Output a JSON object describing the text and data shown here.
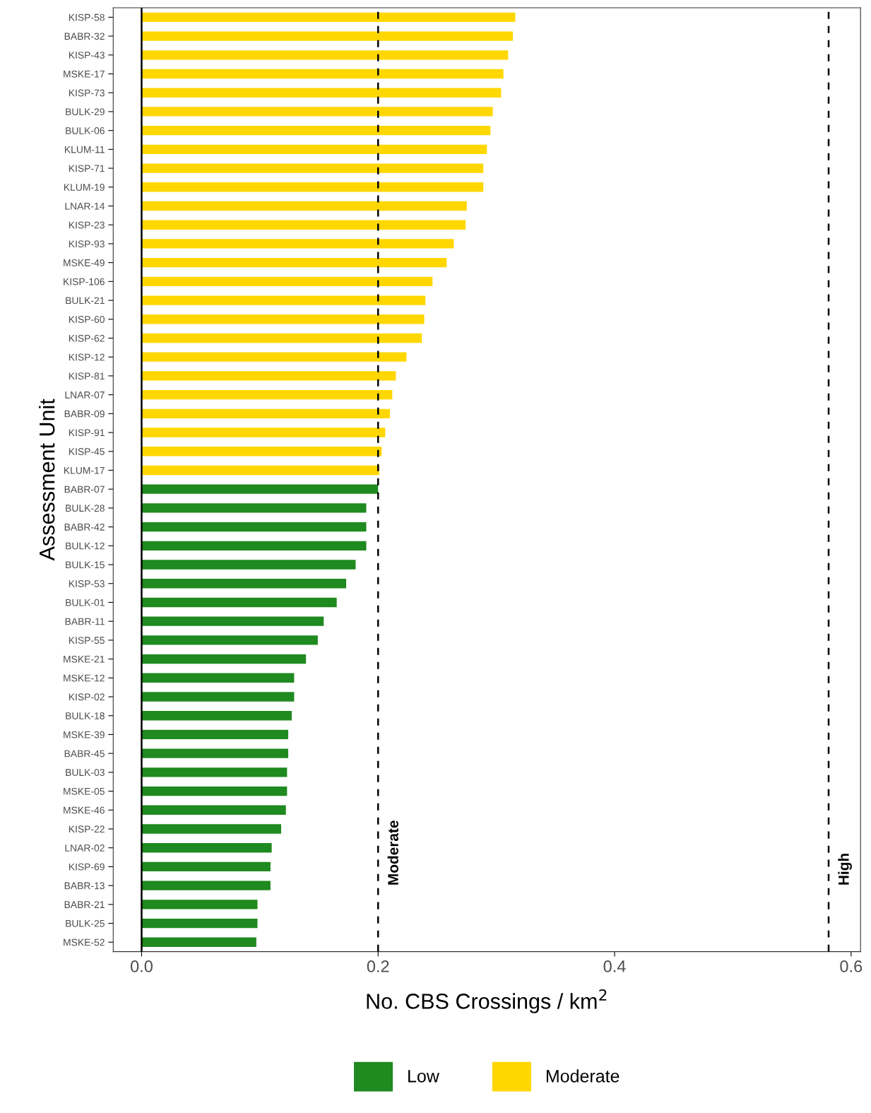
{
  "chart_data": {
    "type": "bar",
    "orientation": "horizontal",
    "xlabel": "No. CBS Crossings / km$^{2}$",
    "ylabel": "Assessment Unit",
    "categories": [
      "KISP-58",
      "BABR-32",
      "KISP-43",
      "MSKE-17",
      "KISP-73",
      "BULK-29",
      "BULK-06",
      "KLUM-11",
      "KISP-71",
      "KLUM-19",
      "LNAR-14",
      "KISP-23",
      "KISP-93",
      "MSKE-49",
      "KISP-106",
      "BULK-21",
      "KISP-60",
      "KISP-62",
      "KISP-12",
      "KISP-81",
      "LNAR-07",
      "BABR-09",
      "KISP-91",
      "KISP-45",
      "KLUM-17",
      "BABR-07",
      "BULK-28",
      "BABR-42",
      "BULK-12",
      "BULK-15",
      "KISP-53",
      "BULK-01",
      "BABR-11",
      "KISP-55",
      "MSKE-21",
      "MSKE-12",
      "KISP-02",
      "BULK-18",
      "MSKE-39",
      "BABR-45",
      "BULK-03",
      "MSKE-05",
      "MSKE-46",
      "KISP-22",
      "LNAR-02",
      "KISP-69",
      "BABR-13",
      "BABR-21",
      "BULK-25",
      "MSKE-52"
    ],
    "series": [
      {
        "name": "Low",
        "color": "#1f8a1f",
        "values": [
          null,
          null,
          null,
          null,
          null,
          null,
          null,
          null,
          null,
          null,
          null,
          null,
          null,
          null,
          null,
          null,
          null,
          null,
          null,
          null,
          null,
          null,
          null,
          null,
          null,
          0.2,
          0.19,
          0.19,
          0.19,
          0.181,
          0.173,
          0.165,
          0.154,
          0.149,
          0.139,
          0.129,
          0.129,
          0.127,
          0.124,
          0.124,
          0.123,
          0.123,
          0.122,
          0.118,
          0.11,
          0.109,
          0.109,
          0.098,
          0.098,
          0.097
        ]
      },
      {
        "name": "Moderate",
        "color": "#ffd700",
        "values": [
          0.316,
          0.314,
          0.31,
          0.306,
          0.304,
          0.297,
          0.295,
          0.292,
          0.289,
          0.289,
          0.275,
          0.274,
          0.264,
          0.258,
          0.246,
          0.24,
          0.239,
          0.237,
          0.224,
          0.215,
          0.212,
          0.21,
          0.206,
          0.203,
          0.201,
          null,
          null,
          null,
          null,
          null,
          null,
          null,
          null,
          null,
          null,
          null,
          null,
          null,
          null,
          null,
          null,
          null,
          null,
          null,
          null,
          null,
          null,
          null,
          null,
          null
        ]
      }
    ],
    "xlim": [
      -0.024,
      0.608
    ],
    "xticks": [
      {
        "value": 0,
        "label": "0.0"
      },
      0.2,
      0.4,
      0.6
    ],
    "ref_lines": [
      {
        "axis": "x",
        "value": 0,
        "label": null,
        "color": "#000000",
        "line_style": "solid"
      },
      {
        "axis": "x",
        "value": 0.2,
        "label": "Moderate",
        "color": "#000000",
        "line_style": "dashed"
      },
      {
        "axis": "x",
        "value": 0.581,
        "label": "High",
        "color": "#000000",
        "line_style": "dashed"
      }
    ],
    "grid": false,
    "legend": "bottom"
  }
}
